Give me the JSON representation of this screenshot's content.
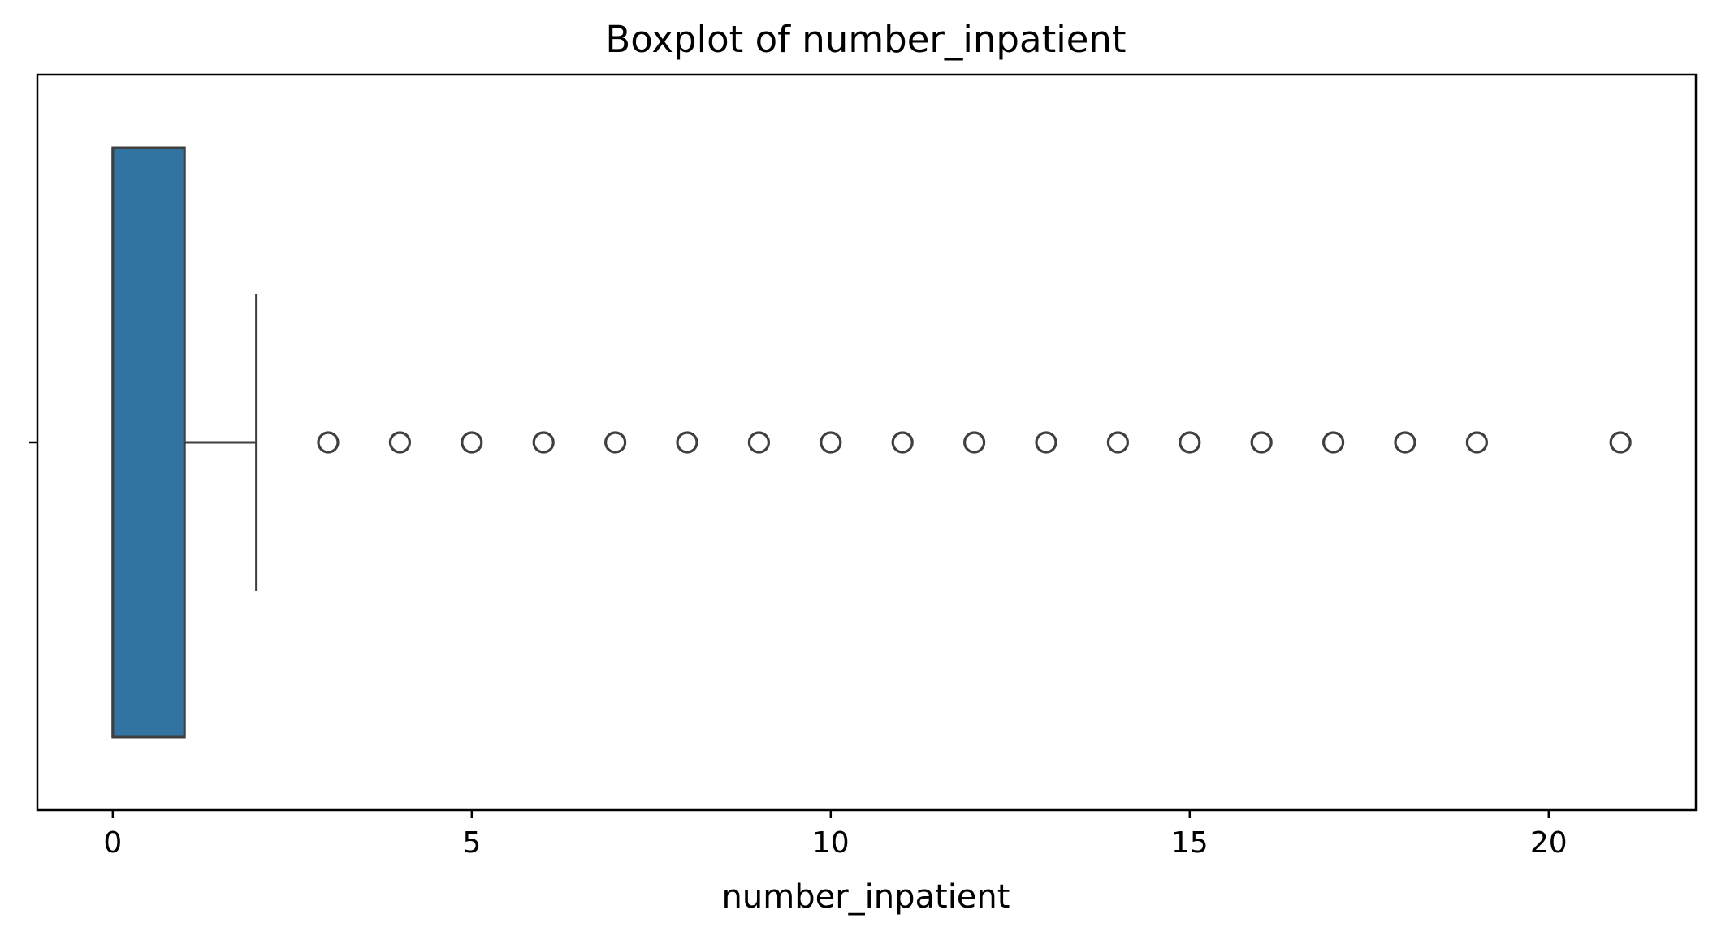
{
  "chart_data": {
    "type": "boxplot",
    "title": "Boxplot of number_inpatient",
    "xlabel": "number_inpatient",
    "ylabel": "",
    "xlim": [
      -1.05,
      22.05
    ],
    "xticks": [
      0,
      5,
      10,
      15,
      20
    ],
    "xtick_labels": [
      "0",
      "5",
      "10",
      "15",
      "20"
    ],
    "grid": false,
    "legend": "none",
    "box": {
      "q1": 0,
      "median": 0,
      "q3": 1,
      "whisker_low": 0,
      "whisker_high": 2
    },
    "outliers": [
      3,
      4,
      5,
      6,
      7,
      8,
      9,
      10,
      11,
      12,
      13,
      14,
      15,
      16,
      17,
      18,
      19,
      21
    ],
    "colors": {
      "box_fill": "#3274a1",
      "edge": "#3f3f3f",
      "outlier_edge": "#3f3f3f"
    }
  }
}
